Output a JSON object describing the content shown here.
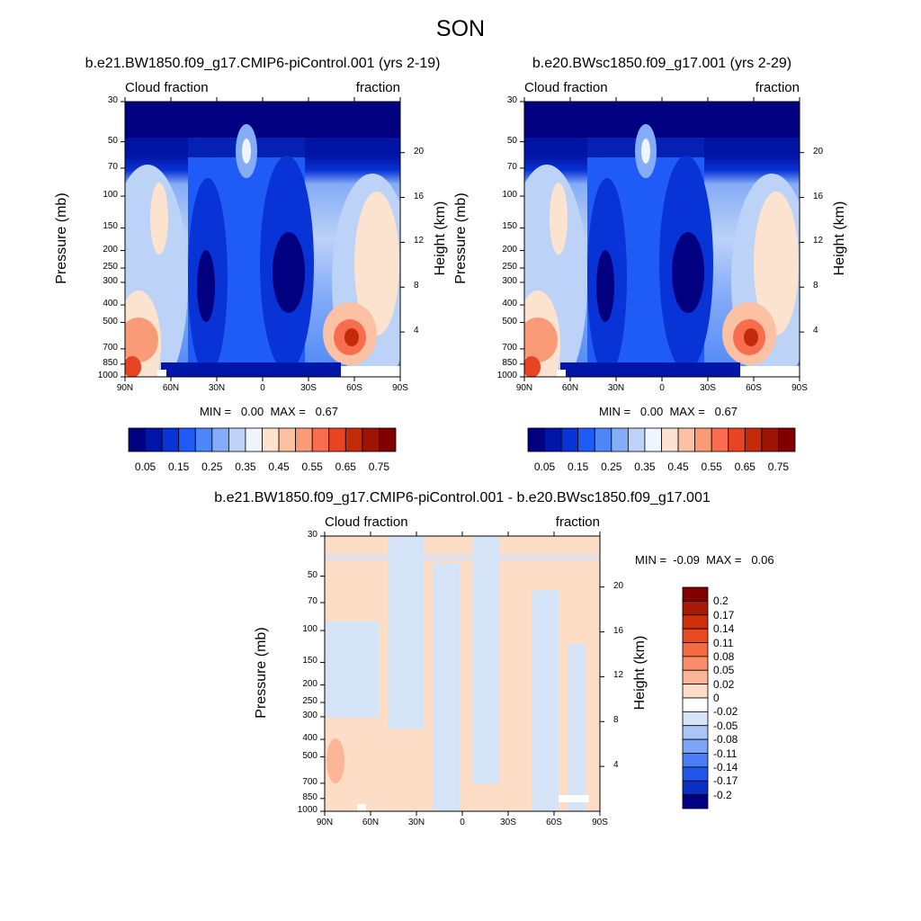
{
  "page": {
    "title": "SON"
  },
  "chart_data": [
    {
      "type": "heatmap",
      "title": "b.e21.BW1850.f09_g17.CMIP6-piControl.001 (yrs 2-19)",
      "left_label": "Cloud fraction",
      "right_label": "fraction",
      "ylabel": "Pressure (mb)",
      "ylabel_right": "Height (km)",
      "xticks": [
        "90N",
        "60N",
        "30N",
        "0",
        "30S",
        "60S",
        "90S"
      ],
      "yticks": [
        "30",
        "50",
        "70",
        "100",
        "150",
        "200",
        "250",
        "300",
        "400",
        "500",
        "700",
        "850",
        "1000"
      ],
      "yticks_right": [
        "20",
        "16",
        "12",
        "8",
        "4"
      ],
      "xlim": [
        90,
        -90
      ],
      "ylim": [
        1000,
        30
      ],
      "ylog": true,
      "stats": "MIN =   0.00  MAX =   0.67",
      "colorbar": {
        "orientation": "horizontal",
        "labels": [
          "0.05",
          "0.15",
          "0.25",
          "0.35",
          "0.45",
          "0.55",
          "0.65",
          "0.75"
        ],
        "colors": [
          "#000080",
          "#0016a8",
          "#0833d6",
          "#1f5cf7",
          "#4d87f7",
          "#85acf7",
          "#bcd2f7",
          "#eff5fc",
          "#fce3cf",
          "#fcc1a2",
          "#fa9b78",
          "#f76d4d",
          "#e84322",
          "#c22a0a",
          "#9e1403",
          "#800000"
        ]
      }
    },
    {
      "type": "heatmap",
      "title": "b.e20.BWsc1850.f09_g17.001 (yrs 2-29)",
      "left_label": "Cloud fraction",
      "right_label": "fraction",
      "ylabel": "Pressure (mb)",
      "ylabel_right": "Height (km)",
      "xticks": [
        "90N",
        "60N",
        "30N",
        "0",
        "30S",
        "60S",
        "90S"
      ],
      "yticks": [
        "30",
        "50",
        "70",
        "100",
        "150",
        "200",
        "250",
        "300",
        "400",
        "500",
        "700",
        "850",
        "1000"
      ],
      "yticks_right": [
        "20",
        "16",
        "12",
        "8",
        "4"
      ],
      "xlim": [
        90,
        -90
      ],
      "ylim": [
        1000,
        30
      ],
      "ylog": true,
      "stats": "MIN =   0.00  MAX =   0.67",
      "colorbar": {
        "orientation": "horizontal",
        "labels": [
          "0.05",
          "0.15",
          "0.25",
          "0.35",
          "0.45",
          "0.55",
          "0.65",
          "0.75"
        ],
        "colors": [
          "#000080",
          "#0016a8",
          "#0833d6",
          "#1f5cf7",
          "#4d87f7",
          "#85acf7",
          "#bcd2f7",
          "#eff5fc",
          "#fce3cf",
          "#fcc1a2",
          "#fa9b78",
          "#f76d4d",
          "#e84322",
          "#c22a0a",
          "#9e1403",
          "#800000"
        ]
      }
    },
    {
      "type": "heatmap",
      "title": "b.e21.BW1850.f09_g17.CMIP6-piControl.001 - b.e20.BWsc1850.f09_g17.001",
      "left_label": "Cloud fraction",
      "right_label": "fraction",
      "ylabel": "Pressure (mb)",
      "ylabel_right": "Height (km)",
      "xticks": [
        "90N",
        "60N",
        "30N",
        "0",
        "30S",
        "60S",
        "90S"
      ],
      "yticks": [
        "30",
        "50",
        "70",
        "100",
        "150",
        "200",
        "250",
        "300",
        "400",
        "500",
        "700",
        "850",
        "1000"
      ],
      "yticks_right": [
        "20",
        "16",
        "12",
        "8",
        "4"
      ],
      "xlim": [
        90,
        -90
      ],
      "ylim": [
        1000,
        30
      ],
      "ylog": true,
      "stats": "MIN =  -0.09  MAX =   0.06",
      "colorbar": {
        "orientation": "vertical",
        "labels": [
          "0.2",
          "0.17",
          "0.14",
          "0.11",
          "0.08",
          "0.05",
          "0.02",
          "0",
          "-0.02",
          "-0.05",
          "-0.08",
          "-0.11",
          "-0.14",
          "-0.17",
          "-0.2"
        ],
        "colors": [
          "#800000",
          "#a81a05",
          "#cc300d",
          "#e84a22",
          "#f56b40",
          "#fa8e68",
          "#fcb596",
          "#fdddc6",
          "#ffffff",
          "#d6e4f7",
          "#a9c6f5",
          "#7ba6f5",
          "#4a7ff5",
          "#2256e8",
          "#0a2fc4",
          "#000080"
        ]
      }
    }
  ]
}
